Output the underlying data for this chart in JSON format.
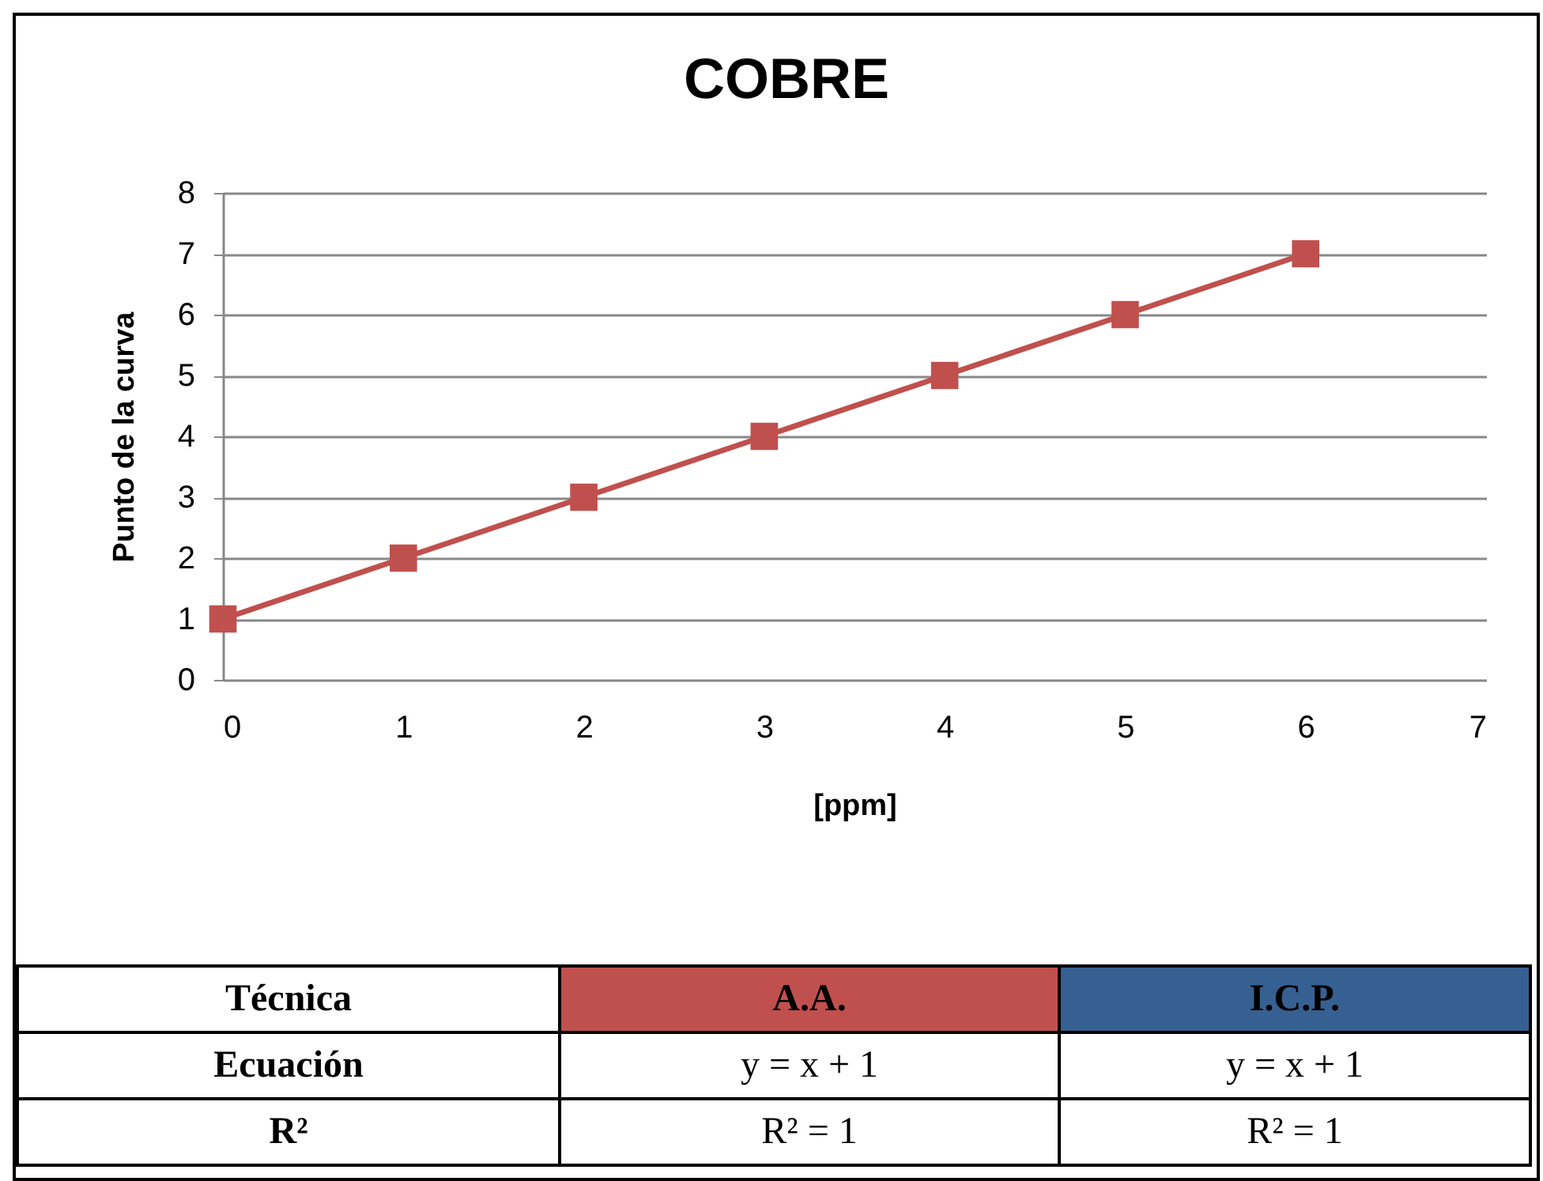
{
  "chart_data": {
    "type": "line",
    "title": "COBRE",
    "xlabel": "[ppm]",
    "ylabel": "Punto de la curva",
    "x": [
      0,
      1,
      2,
      3,
      4,
      5,
      6
    ],
    "series": [
      {
        "name": "A.A.",
        "color": "#c0504d",
        "values": [
          1,
          2,
          3,
          4,
          5,
          6,
          7
        ]
      },
      {
        "name": "I.C.P.",
        "values": [
          null,
          null,
          null,
          null,
          null,
          null,
          null
        ]
      }
    ],
    "xlim": [
      0,
      7
    ],
    "xticks": [
      0,
      1,
      2,
      3,
      4,
      5,
      6,
      7
    ],
    "ylim": [
      0,
      8
    ],
    "yticks": [
      0,
      1,
      2,
      3,
      4,
      5,
      6,
      7,
      8
    ],
    "grid": "y",
    "marker": "square",
    "line_style": "solid",
    "legend": "bottom",
    "annotations": [
      "Técnica",
      "Ecuación",
      "y = x + 1",
      "y = x + 1",
      "R²",
      "R² = 1",
      "R² = 1"
    ]
  }
}
